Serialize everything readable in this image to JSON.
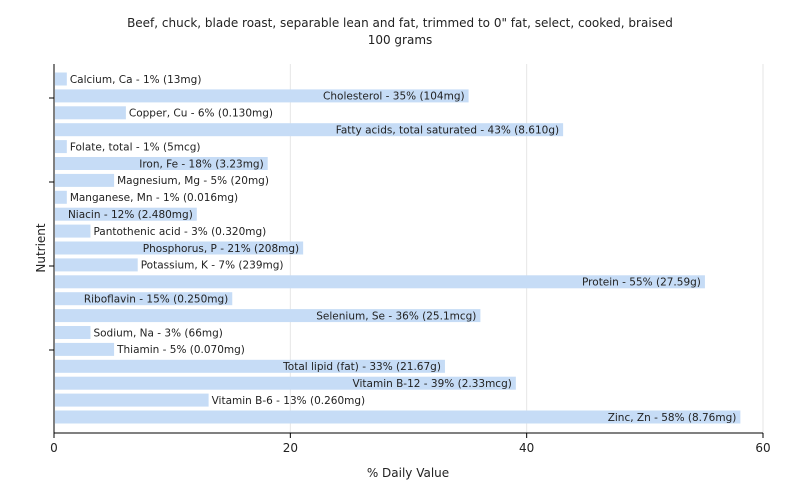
{
  "chart_data": {
    "type": "bar",
    "orientation": "horizontal",
    "title": "Beef, chuck, blade roast, separable lean and fat, trimmed to 0\" fat, select, cooked, braised",
    "subtitle": "100 grams",
    "xlabel": "% Daily Value",
    "ylabel": "Nutrient",
    "xlim": [
      0,
      60
    ],
    "xticks": [
      "0",
      "20",
      "40",
      "60"
    ],
    "grid": true,
    "bar_color": "#c6dcf6",
    "categories": [
      "Calcium, Ca",
      "Cholesterol",
      "Copper, Cu",
      "Fatty acids, total saturated",
      "Folate, total",
      "Iron, Fe",
      "Magnesium, Mg",
      "Manganese, Mn",
      "Niacin",
      "Pantothenic acid",
      "Phosphorus, P",
      "Potassium, K",
      "Protein",
      "Riboflavin",
      "Selenium, Se",
      "Sodium, Na",
      "Thiamin",
      "Total lipid (fat)",
      "Vitamin B-12",
      "Vitamin B-6",
      "Zinc, Zn"
    ],
    "values": [
      1,
      35,
      6,
      43,
      1,
      18,
      5,
      1,
      12,
      3,
      21,
      7,
      55,
      15,
      36,
      3,
      5,
      33,
      39,
      13,
      58
    ],
    "labels": [
      "Calcium, Ca - 1% (13mg)",
      "Cholesterol - 35% (104mg)",
      "Copper, Cu - 6% (0.130mg)",
      "Fatty acids, total saturated - 43% (8.610g)",
      "Folate, total - 1% (5mcg)",
      "Iron, Fe - 18% (3.23mg)",
      "Magnesium, Mg - 5% (20mg)",
      "Manganese, Mn - 1% (0.016mg)",
      "Niacin - 12% (2.480mg)",
      "Pantothenic acid - 3% (0.320mg)",
      "Phosphorus, P - 21% (208mg)",
      "Potassium, K - 7% (239mg)",
      "Protein - 55% (27.59g)",
      "Riboflavin - 15% (0.250mg)",
      "Selenium, Se - 36% (25.1mcg)",
      "Sodium, Na - 3% (66mg)",
      "Thiamin - 5% (0.070mg)",
      "Total lipid (fat) - 33% (21.67g)",
      "Vitamin B-12 - 39% (2.33mcg)",
      "Vitamin B-6 - 13% (0.260mg)",
      "Zinc, Zn - 58% (8.76mg)"
    ]
  }
}
